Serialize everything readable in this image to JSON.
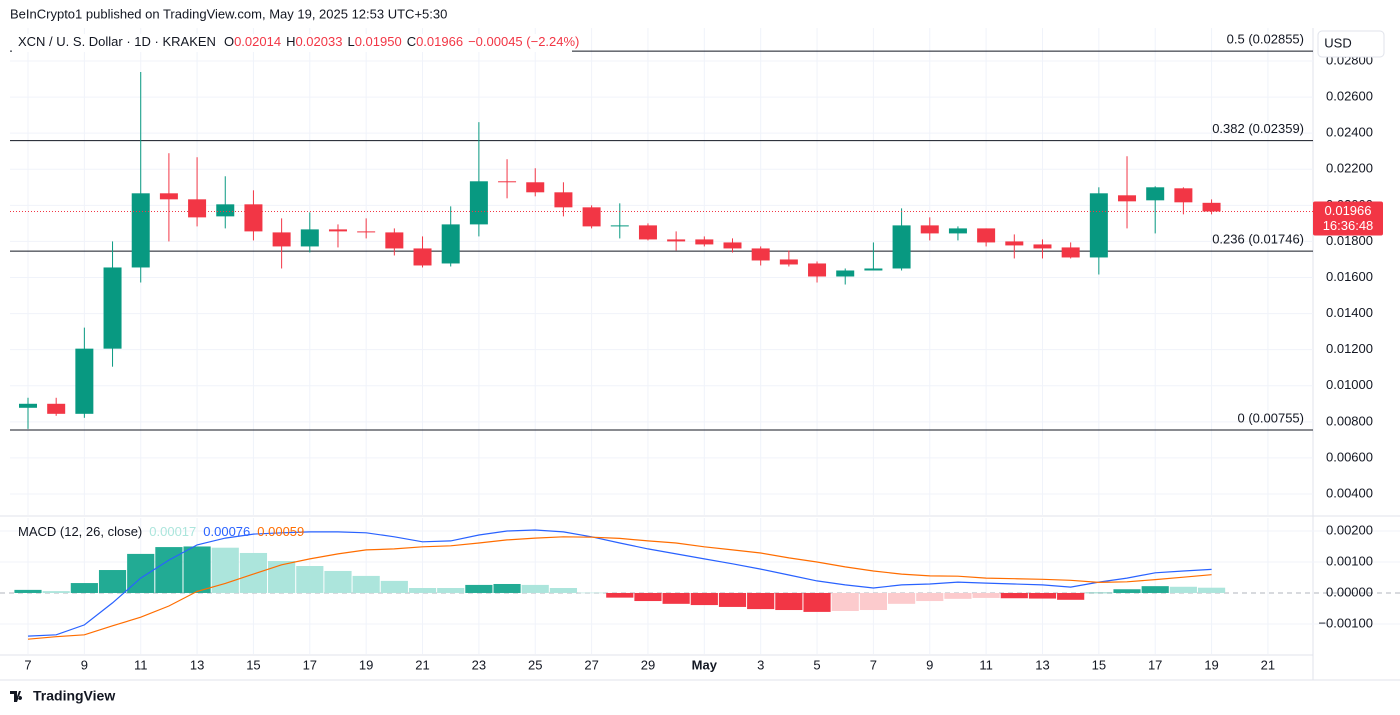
{
  "header": "BeInCrypto1 published on TradingView.com, May 19, 2025 12:53 UTC+5:30",
  "footer": "TradingView",
  "chart_data": [
    {
      "type": "candlestick",
      "title": "XCN / U. S. Dollar · 1D · KRAKEN",
      "ohlc_legend": [
        {
          "key": "O",
          "value": "0.02014"
        },
        {
          "key": "H",
          "value": "0.02033"
        },
        {
          "key": "L",
          "value": "0.01950"
        },
        {
          "key": "C",
          "value": "0.01966"
        }
      ],
      "change": "−0.00045 (−2.24%)",
      "currency": "USD",
      "countdown": "16:36:48",
      "categories": [
        "7",
        null,
        "9",
        null,
        "11",
        null,
        "13",
        null,
        "15",
        null,
        "17",
        null,
        "19",
        null,
        "21",
        null,
        "23",
        null,
        "25",
        null,
        "27",
        null,
        "29",
        null,
        "May",
        null,
        "3",
        null,
        "5",
        null,
        "7",
        null,
        "9",
        null,
        "11",
        null,
        "13",
        null,
        "15",
        null,
        "17",
        null,
        "19",
        null,
        "21"
      ],
      "open": [
        0.008778,
        0.009,
        0.008444,
        0.012056,
        0.016556,
        0.020667,
        0.020333,
        0.019389,
        0.020056,
        0.0185,
        0.017722,
        0.018667,
        0.018556,
        0.0185,
        0.017611,
        0.016778,
        0.018944,
        0.021333,
        0.021278,
        0.020722,
        0.019889,
        0.018833,
        0.018889,
        0.018111,
        0.018111,
        0.017944,
        0.017611,
        0.017,
        0.016778,
        0.016056,
        0.016389,
        0.0165,
        0.018889,
        0.018444,
        0.018722,
        0.018,
        0.017833,
        0.017667,
        0.017111,
        0.020556,
        0.020278,
        0.020944,
        0.02014,
        null,
        null
      ],
      "high": [
        0.009333,
        0.009333,
        0.013222,
        0.018,
        0.027389,
        0.022889,
        0.022667,
        0.021611,
        0.020833,
        0.019278,
        0.019611,
        0.018944,
        0.019278,
        0.018722,
        0.018278,
        0.019944,
        0.024611,
        0.022556,
        0.022056,
        0.021278,
        0.02,
        0.020111,
        0.019,
        0.018556,
        0.018278,
        0.018167,
        0.017722,
        0.0175,
        0.016889,
        0.0165,
        0.017944,
        0.019833,
        0.019333,
        0.018833,
        0.018722,
        0.018389,
        0.018111,
        0.017944,
        0.021,
        0.022722,
        0.021056,
        0.021,
        0.02033,
        null,
        null
      ],
      "low": [
        0.007611,
        0.008333,
        0.008222,
        0.011056,
        0.015722,
        0.018,
        0.018833,
        0.018722,
        0.018056,
        0.0165,
        0.017389,
        0.017667,
        0.018167,
        0.017222,
        0.016556,
        0.016611,
        0.018278,
        0.020389,
        0.0205,
        0.019389,
        0.018722,
        0.018167,
        0.018056,
        0.0175,
        0.017722,
        0.017389,
        0.016667,
        0.016611,
        0.015722,
        0.015611,
        0.016389,
        0.016389,
        0.018056,
        0.018056,
        0.017722,
        0.017056,
        0.017056,
        0.017056,
        0.016167,
        0.018722,
        0.018444,
        0.0195,
        0.0195,
        null,
        null
      ],
      "close": [
        0.009,
        0.008444,
        0.012056,
        0.016556,
        0.020667,
        0.020333,
        0.019333,
        0.020056,
        0.018556,
        0.017722,
        0.018667,
        0.018556,
        0.0185,
        0.017611,
        0.016667,
        0.018944,
        0.021333,
        0.021278,
        0.020722,
        0.019889,
        0.018833,
        0.018889,
        0.018111,
        0.018,
        0.017833,
        0.017611,
        0.016944,
        0.016722,
        0.016056,
        0.016389,
        0.0165,
        0.018889,
        0.018444,
        0.018722,
        0.017944,
        0.017778,
        0.017611,
        0.017111,
        0.020667,
        0.020222,
        0.021,
        0.020167,
        0.01966,
        null,
        null
      ],
      "up_color": "#089981",
      "down_color": "#f23645",
      "ylim": [
        0.00278,
        0.02983
      ],
      "yticks": [
        {
          "value": 0.004,
          "label": "0.00400"
        },
        {
          "value": 0.006,
          "label": "0.00600"
        },
        {
          "value": 0.008,
          "label": "0.00800"
        },
        {
          "value": 0.01,
          "label": "0.01000"
        },
        {
          "value": 0.012,
          "label": "0.01200"
        },
        {
          "value": 0.014,
          "label": "0.01400"
        },
        {
          "value": 0.016,
          "label": "0.01600"
        },
        {
          "value": 0.018,
          "label": "0.01800"
        },
        {
          "value": 0.02,
          "label": "0.02000"
        },
        {
          "value": 0.022,
          "label": "0.02200"
        },
        {
          "value": 0.024,
          "label": "0.02400"
        },
        {
          "value": 0.026,
          "label": "0.02600"
        },
        {
          "value": 0.028,
          "label": "0.02800"
        }
      ],
      "levels": [
        {
          "value": 0.02855,
          "label": "0.5 (0.02855)"
        },
        {
          "value": 0.02359,
          "label": "0.382 (0.02359)"
        },
        {
          "value": 0.01746,
          "label": "0.236 (0.01746)"
        },
        {
          "value": 0.00755,
          "label": "0 (0.00755)"
        }
      ],
      "grid": true
    },
    {
      "type": "macd",
      "title": "MACD (12, 26, close)",
      "series": [
        {
          "kind": "histogram",
          "last_label": "0.00017",
          "color": "#ace5dc",
          "colors": [
            "#22ab94",
            "#ace5dc",
            "#f23645",
            "#fccbcd"
          ],
          "values": [
            0.0001,
            6e-05,
            0.00032,
            0.00074,
            0.00126,
            0.00148,
            0.0015,
            0.00146,
            0.00129,
            0.00103,
            0.00087,
            0.00071,
            0.00055,
            0.00039,
            0.00016,
            0.00016,
            0.00026,
            0.00029,
            0.00026,
            0.00016,
            1e-05,
            -0.00015,
            -0.00026,
            -0.00035,
            -0.00039,
            -0.00045,
            -0.00052,
            -0.00055,
            -0.00061,
            -0.00058,
            -0.00055,
            -0.00035,
            -0.00026,
            -0.00019,
            -0.00016,
            -0.00017,
            -0.00018,
            -0.00022,
            1e-05,
            0.00012,
            0.00022,
            0.0002,
            0.00017,
            null,
            null
          ]
        },
        {
          "kind": "line",
          "last_label": "0.00076",
          "color": "#2962ff",
          "values": [
            -0.00139,
            -0.00135,
            -0.00103,
            -0.00032,
            0.00048,
            0.00106,
            0.00155,
            0.00177,
            0.0019,
            0.00194,
            0.00197,
            0.00197,
            0.00194,
            0.00181,
            0.00165,
            0.00168,
            0.00187,
            0.002,
            0.00203,
            0.00197,
            0.00181,
            0.00161,
            0.00142,
            0.00126,
            0.0011,
            0.00094,
            0.00077,
            0.00058,
            0.00039,
            0.00026,
            0.00016,
            0.00026,
            0.00029,
            0.00035,
            0.00032,
            0.00029,
            0.00026,
            0.00019,
            0.00035,
            0.00048,
            0.00065,
            0.00071,
            0.00076,
            null,
            null
          ]
        },
        {
          "kind": "line",
          "last_label": "0.00059",
          "color": "#ff6d00",
          "values": [
            -0.00149,
            -0.00141,
            -0.00135,
            -0.00106,
            -0.00078,
            -0.00042,
            5e-05,
            0.00031,
            0.00061,
            0.00091,
            0.0011,
            0.00126,
            0.00139,
            0.00142,
            0.00149,
            0.00152,
            0.00161,
            0.00171,
            0.00177,
            0.00181,
            0.0018,
            0.00176,
            0.00168,
            0.00161,
            0.00149,
            0.00139,
            0.00129,
            0.00113,
            0.001,
            0.00084,
            0.00071,
            0.00061,
            0.00055,
            0.00054,
            0.00048,
            0.00046,
            0.00044,
            0.00041,
            0.00034,
            0.00036,
            0.00043,
            0.00051,
            0.00059,
            null,
            null
          ]
        }
      ],
      "ylim": [
        -0.002,
        0.00245
      ],
      "yticks": [
        {
          "value": -0.001,
          "label": "−0.00100"
        },
        {
          "value": 0,
          "label": "0.00000"
        },
        {
          "value": 0.001,
          "label": "0.00100"
        },
        {
          "value": 0.002,
          "label": "0.00200"
        }
      ],
      "grid": true
    }
  ]
}
